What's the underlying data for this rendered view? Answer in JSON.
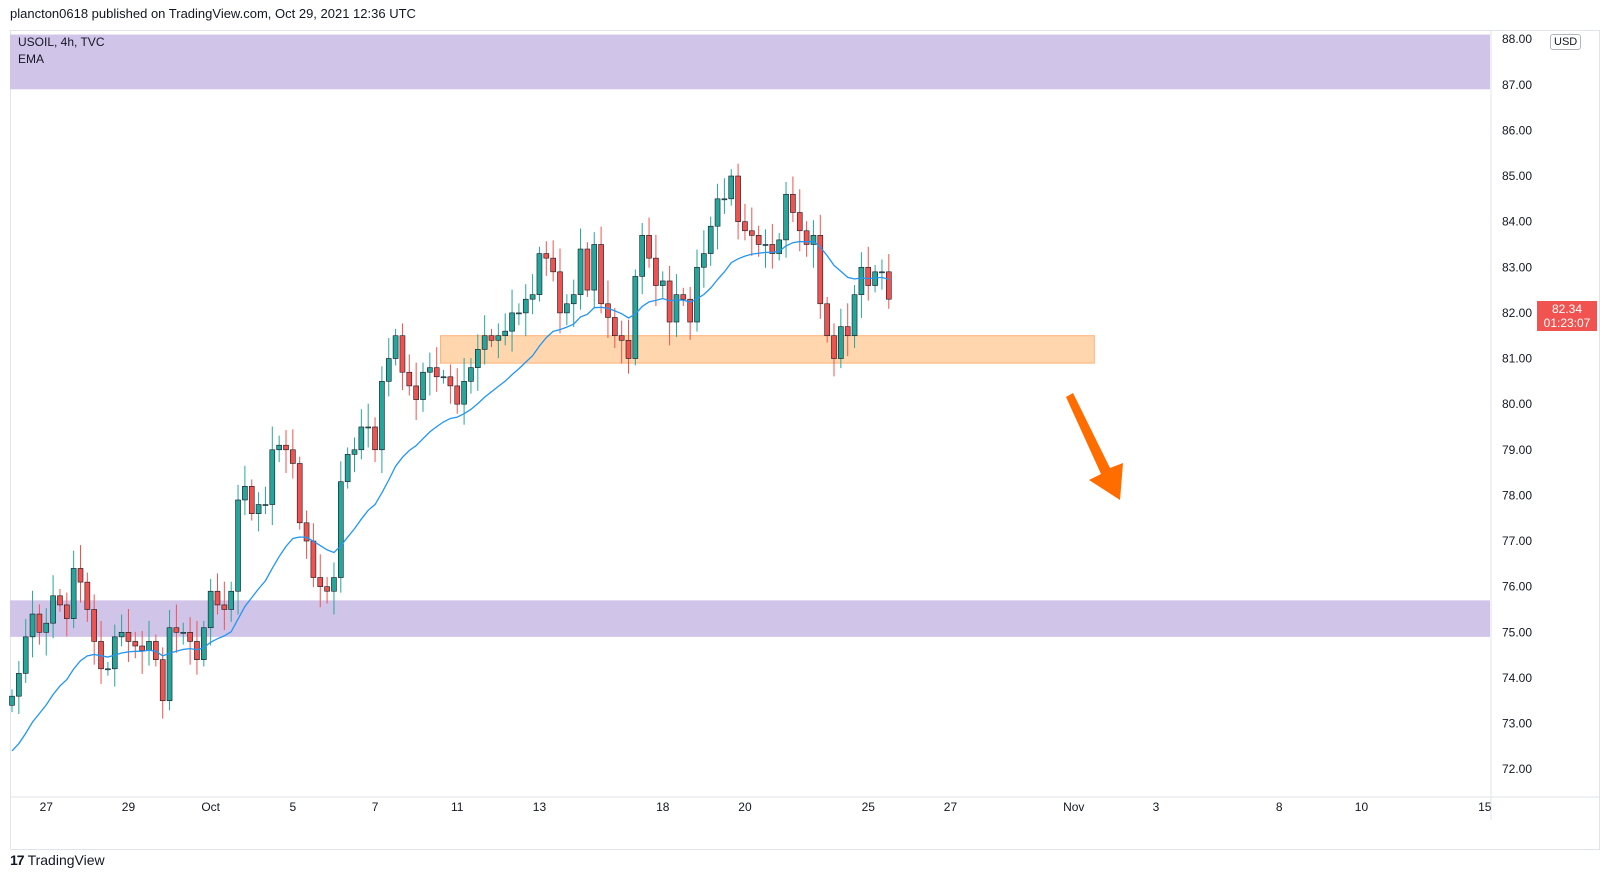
{
  "header": {
    "publisher_line": "plancton0618 published on TradingView.com, Oct 29, 2021 12:36 UTC"
  },
  "legend": {
    "symbol_line": "USOIL, 4h, TVC",
    "indicator": "EMA"
  },
  "currency_badge": "USD",
  "last_price": {
    "price": "82.34",
    "countdown": "01:23:07"
  },
  "footer": {
    "logo_glyph": "17",
    "brand": "TradingView"
  },
  "colors": {
    "bull": "#26a69a",
    "bull_body": "#26a69a",
    "bear": "#ef5350",
    "ema": "#2196f3",
    "zone_purple": "#d1c4e9",
    "zone_orange": "#ffcc99",
    "arrow": "#ff6d00",
    "price_box": "#f05350"
  },
  "chart_data": {
    "type": "candlestick",
    "symbol": "USOIL",
    "timeframe": "4h",
    "ylim": [
      71.5,
      88.2
    ],
    "y_ticks": [
      "72.00",
      "73.00",
      "74.00",
      "75.00",
      "76.00",
      "77.00",
      "78.00",
      "79.00",
      "80.00",
      "81.00",
      "82.00",
      "83.00",
      "84.00",
      "85.00",
      "86.00",
      "87.00",
      "88.00"
    ],
    "x_ticks": [
      {
        "label": "27",
        "idx": 5
      },
      {
        "label": "29",
        "idx": 17
      },
      {
        "label": "Oct",
        "idx": 29
      },
      {
        "label": "5",
        "idx": 41
      },
      {
        "label": "7",
        "idx": 53
      },
      {
        "label": "11",
        "idx": 65
      },
      {
        "label": "13",
        "idx": 77
      },
      {
        "label": "18",
        "idx": 95
      },
      {
        "label": "20",
        "idx": 107
      },
      {
        "label": "25",
        "idx": 125
      },
      {
        "label": "27",
        "idx": 137
      },
      {
        "label": "Nov",
        "idx": 155
      },
      {
        "label": "3",
        "idx": 167
      },
      {
        "label": "8",
        "idx": 185
      },
      {
        "label": "10",
        "idx": 197
      },
      {
        "label": "15",
        "idx": 215
      }
    ],
    "ohlc_note": "approximate values read from the chart",
    "closes": [
      73.6,
      74.1,
      74.9,
      75.4,
      75.0,
      75.2,
      75.8,
      75.6,
      75.3,
      76.4,
      76.1,
      75.5,
      74.8,
      74.2,
      74.2,
      74.9,
      75.0,
      74.8,
      74.7,
      74.6,
      74.8,
      74.4,
      73.5,
      75.1,
      75.0,
      75.0,
      74.8,
      74.4,
      75.1,
      75.9,
      75.6,
      75.5,
      75.9,
      77.9,
      78.2,
      77.6,
      77.8,
      77.8,
      79.0,
      79.1,
      79.0,
      78.7,
      77.4,
      77.0,
      76.2,
      76.0,
      75.9,
      76.2,
      78.3,
      78.9,
      79.0,
      79.5,
      79.5,
      79.0,
      80.5,
      81.0,
      81.5,
      80.7,
      80.4,
      80.1,
      80.7,
      80.8,
      80.6,
      80.6,
      80.4,
      80.0,
      80.5,
      80.8,
      81.2,
      81.5,
      81.4,
      81.5,
      81.6,
      82.0,
      82.0,
      82.3,
      82.4,
      83.3,
      83.2,
      82.9,
      82.0,
      82.2,
      82.4,
      83.4,
      82.5,
      83.5,
      82.2,
      81.9,
      81.5,
      81.4,
      81.0,
      82.8,
      83.7,
      83.2,
      82.6,
      82.7,
      81.8,
      82.4,
      82.3,
      81.8,
      83.0,
      83.3,
      83.9,
      84.5,
      84.5,
      85.0,
      84.0,
      83.8,
      83.7,
      83.5,
      83.5,
      83.3,
      83.6,
      84.6,
      84.2,
      83.8,
      83.5,
      83.7,
      82.2,
      81.5,
      81.0,
      81.7,
      81.5,
      82.4,
      83.0,
      82.6,
      82.9,
      82.9,
      82.3
    ],
    "ema_note": "EMA line follows closes with smoothing",
    "zones": [
      {
        "type": "resistance",
        "low": 86.9,
        "high": 88.1,
        "color": "zone_purple"
      },
      {
        "type": "support",
        "low": 74.9,
        "high": 75.7,
        "color": "zone_purple"
      },
      {
        "type": "support",
        "low": 80.9,
        "high": 81.5,
        "color": "zone_orange",
        "from_idx": 63,
        "to_idx": 158
      }
    ],
    "annotation": {
      "type": "arrow-down",
      "meaning": "expected move down"
    }
  }
}
